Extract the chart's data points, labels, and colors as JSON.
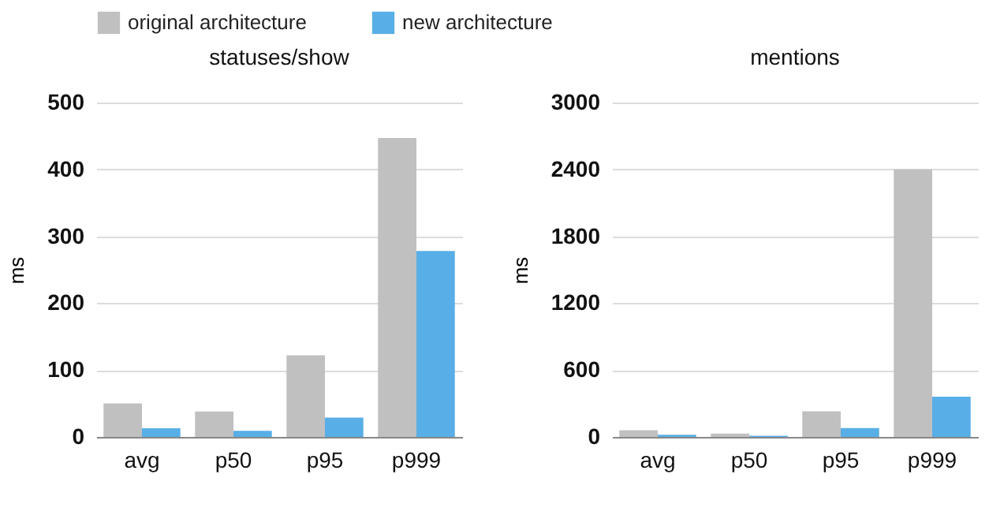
{
  "chart_data": [
    {
      "type": "bar",
      "title": "statuses/show",
      "ylabel": "ms",
      "categories": [
        "avg",
        "p50",
        "p95",
        "p999"
      ],
      "series": [
        {
          "name": "original architecture",
          "color": "#c0c0c0",
          "values": [
            50,
            38,
            122,
            447
          ]
        },
        {
          "name": "new architecture",
          "color": "#58aee6",
          "values": [
            13,
            9,
            29,
            278
          ]
        }
      ],
      "ylim": [
        0,
        500
      ],
      "yticks": [
        0,
        100,
        200,
        300,
        400,
        500
      ],
      "grid": "y",
      "legend": "top"
    },
    {
      "type": "bar",
      "title": "mentions",
      "ylabel": "ms",
      "categories": [
        "avg",
        "p50",
        "p95",
        "p999"
      ],
      "series": [
        {
          "name": "original architecture",
          "color": "#c0c0c0",
          "values": [
            60,
            30,
            230,
            2400
          ]
        },
        {
          "name": "new architecture",
          "color": "#58aee6",
          "values": [
            20,
            10,
            80,
            360
          ]
        }
      ],
      "ylim": [
        0,
        3000
      ],
      "yticks": [
        0,
        600,
        1200,
        1800,
        2400,
        3000
      ],
      "grid": "y",
      "legend": "top"
    }
  ]
}
